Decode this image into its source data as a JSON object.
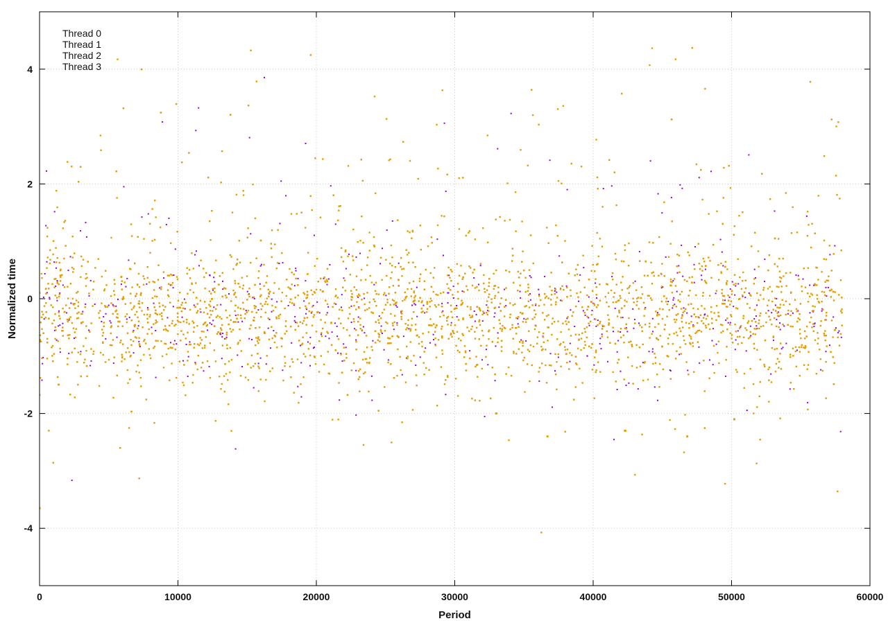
{
  "chart_data": {
    "type": "scatter",
    "title": "",
    "xlabel": "Period",
    "ylabel": "Normalized time",
    "xlim": [
      0,
      60000
    ],
    "ylim": [
      -5,
      5
    ],
    "xticks": [
      0,
      10000,
      20000,
      30000,
      40000,
      50000,
      60000
    ],
    "yticks": [
      -4,
      -2,
      0,
      2,
      4
    ],
    "grid": true,
    "legend_position": "top-left",
    "data_x_range": [
      0,
      58000
    ],
    "series": [
      {
        "name": "Thread 0",
        "color": "#9400d3",
        "marker": "plus",
        "typical_range": [
          -1.5,
          1.0
        ],
        "center": -0.3
      },
      {
        "name": "Thread 1",
        "color": "#009e73",
        "marker": "cross",
        "typical_range": [
          -1.5,
          1.0
        ],
        "center": -0.3
      },
      {
        "name": "Thread 2",
        "color": "#56b4e9",
        "marker": "star",
        "typical_range": [
          -1.5,
          1.0
        ],
        "center": -0.3
      },
      {
        "name": "Thread 3",
        "color": "#e69f00",
        "marker": "box",
        "typical_range": [
          -1.5,
          1.0
        ],
        "center": -0.3
      }
    ],
    "notable_dips": [
      {
        "x": 33000,
        "y": -2.0
      },
      {
        "x": 36700,
        "y": -2.4
      },
      {
        "x": 42300,
        "y": -2.3
      },
      {
        "x": 46800,
        "y": -2.4
      },
      {
        "x": 50200,
        "y": -2.1
      }
    ],
    "min_point": {
      "x": 0,
      "y": -3.65
    }
  }
}
